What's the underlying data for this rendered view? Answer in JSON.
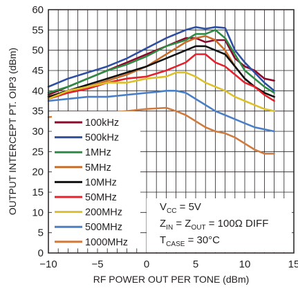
{
  "chart_data": {
    "type": "line",
    "xlabel": "RF POWER OUT PER TONE (dBm)",
    "ylabel": "OUTPUT INTERCEPT PT. OIP3 (dBm)",
    "xlim": [
      -10,
      15
    ],
    "ylim": [
      0,
      60
    ],
    "xticks": [
      "−10",
      "−5",
      "0",
      "5",
      "10",
      "15"
    ],
    "yticks": [
      "0",
      "5",
      "10",
      "15",
      "20",
      "25",
      "30",
      "35",
      "40",
      "45",
      "50",
      "55",
      "60"
    ],
    "grid": true,
    "legend_position": "bottom-left",
    "annotation": {
      "vcc": {
        "main": "V",
        "sub": "CC",
        "rest": " = 5V"
      },
      "zin": {
        "main1": "Z",
        "sub1": "IN",
        "mid": " = Z",
        "sub2": "OUT",
        "rest": " = 100Ω DIFF"
      },
      "tcase": {
        "main": "T",
        "sub": "CASE",
        "rest": " = 30°C"
      }
    },
    "series": [
      {
        "name": "100kHz",
        "color": "#8b0a2c",
        "points": [
          [
            -10,
            39
          ],
          [
            -8,
            41
          ],
          [
            -6,
            43
          ],
          [
            -4,
            45
          ],
          [
            -2,
            47
          ],
          [
            0,
            49
          ],
          [
            2,
            51
          ],
          [
            4,
            53
          ],
          [
            5,
            53
          ],
          [
            6,
            52
          ],
          [
            7,
            52.5
          ],
          [
            8,
            52.5
          ],
          [
            9,
            48
          ],
          [
            10,
            46
          ],
          [
            11,
            45
          ],
          [
            12,
            43
          ],
          [
            13,
            42.5
          ]
        ]
      },
      {
        "name": "500kHz",
        "color": "#2f4fa0",
        "points": [
          [
            -10,
            41
          ],
          [
            -8,
            43
          ],
          [
            -6,
            44.5
          ],
          [
            -4,
            46
          ],
          [
            -2,
            48
          ],
          [
            0,
            50.5
          ],
          [
            2,
            53
          ],
          [
            4,
            55
          ],
          [
            5,
            55.7
          ],
          [
            6,
            55.3
          ],
          [
            7,
            55.7
          ],
          [
            8,
            55.5
          ],
          [
            9,
            50
          ],
          [
            10,
            47
          ],
          [
            11,
            44.5
          ],
          [
            12,
            42
          ],
          [
            13,
            40
          ]
        ]
      },
      {
        "name": "1MHz",
        "color": "#2e8b45",
        "points": [
          [
            -10,
            39.5
          ],
          [
            -8,
            41
          ],
          [
            -6,
            43
          ],
          [
            -4,
            45
          ],
          [
            -2,
            46.5
          ],
          [
            0,
            48.5
          ],
          [
            2,
            51
          ],
          [
            4,
            52.5
          ],
          [
            5,
            54
          ],
          [
            6,
            54
          ],
          [
            7,
            55
          ],
          [
            8,
            53
          ],
          [
            9,
            49
          ],
          [
            10,
            45
          ],
          [
            11,
            43
          ],
          [
            12,
            41
          ],
          [
            13,
            39.5
          ]
        ]
      },
      {
        "name": "5MHz",
        "color": "#c86e2c",
        "points": [
          [
            -10,
            38.5
          ],
          [
            -8,
            40
          ],
          [
            -6,
            41
          ],
          [
            -4,
            42.5
          ],
          [
            -2,
            44
          ],
          [
            0,
            46
          ],
          [
            2,
            49
          ],
          [
            4,
            52
          ],
          [
            5,
            53
          ],
          [
            6,
            53.5
          ],
          [
            7,
            52.5
          ],
          [
            8,
            50
          ],
          [
            9,
            46
          ],
          [
            10,
            43
          ],
          [
            11,
            41
          ],
          [
            12,
            39.5
          ],
          [
            13,
            38.5
          ]
        ]
      },
      {
        "name": "10MHz",
        "color": "#111111",
        "points": [
          [
            -10,
            38.5
          ],
          [
            -8,
            40
          ],
          [
            -6,
            41.5
          ],
          [
            -4,
            43
          ],
          [
            -2,
            44.5
          ],
          [
            0,
            46
          ],
          [
            2,
            48
          ],
          [
            4,
            50
          ],
          [
            5,
            51
          ],
          [
            6,
            51
          ],
          [
            7,
            50
          ],
          [
            8,
            49
          ],
          [
            9,
            46
          ],
          [
            10,
            43
          ],
          [
            11,
            41
          ],
          [
            12,
            39.5
          ],
          [
            13,
            38.5
          ]
        ]
      },
      {
        "name": "50MHz",
        "color": "#e0232c",
        "points": [
          [
            -10,
            38
          ],
          [
            -8,
            39.5
          ],
          [
            -6,
            40.5
          ],
          [
            -4,
            42
          ],
          [
            -2,
            43
          ],
          [
            0,
            43.5
          ],
          [
            2,
            45
          ],
          [
            4,
            47
          ],
          [
            5,
            49
          ],
          [
            6,
            49
          ],
          [
            7,
            47
          ],
          [
            8,
            46
          ],
          [
            9,
            44
          ],
          [
            10,
            42
          ],
          [
            11,
            41
          ],
          [
            12,
            39
          ],
          [
            13,
            37.5
          ]
        ]
      },
      {
        "name": "200MHz",
        "color": "#dcc12c",
        "points": [
          [
            -10,
            38
          ],
          [
            -8,
            40
          ],
          [
            -6,
            41
          ],
          [
            -4,
            42
          ],
          [
            -2,
            42
          ],
          [
            0,
            43
          ],
          [
            2,
            43.5
          ],
          [
            3,
            44.5
          ],
          [
            4,
            44.5
          ],
          [
            5,
            43.5
          ],
          [
            6,
            42
          ],
          [
            7,
            41
          ],
          [
            8,
            40
          ],
          [
            9,
            38.5
          ],
          [
            10,
            37.5
          ],
          [
            11,
            36.5
          ],
          [
            12,
            35.5
          ],
          [
            13,
            35
          ]
        ]
      },
      {
        "name": "500MHz",
        "color": "#4a7fc6",
        "points": [
          [
            -10,
            37.5
          ],
          [
            -8,
            38
          ],
          [
            -6,
            38.5
          ],
          [
            -4,
            38.5
          ],
          [
            -2,
            39
          ],
          [
            0,
            39.5
          ],
          [
            1,
            39.7
          ],
          [
            2,
            40
          ],
          [
            3,
            40
          ],
          [
            4,
            39.5
          ],
          [
            5,
            38
          ],
          [
            6,
            36.5
          ],
          [
            7,
            35
          ],
          [
            8,
            34
          ],
          [
            9,
            33
          ],
          [
            10,
            32
          ],
          [
            11,
            31
          ],
          [
            12,
            30.5
          ],
          [
            13,
            30
          ]
        ]
      },
      {
        "name": "1000MHz",
        "color": "#cf7a3e",
        "points": [
          [
            -10,
            33.5
          ],
          [
            -8,
            34
          ],
          [
            -6,
            34.5
          ],
          [
            -4,
            34.5
          ],
          [
            -2,
            35
          ],
          [
            0,
            35.5
          ],
          [
            2,
            35.8
          ],
          [
            3,
            35
          ],
          [
            4,
            34
          ],
          [
            5,
            32.5
          ],
          [
            6,
            31
          ],
          [
            7,
            30
          ],
          [
            8,
            29.5
          ],
          [
            9,
            28.5
          ],
          [
            10,
            27
          ],
          [
            11,
            25.5
          ],
          [
            12,
            24.5
          ],
          [
            13,
            24.5
          ]
        ]
      }
    ]
  }
}
